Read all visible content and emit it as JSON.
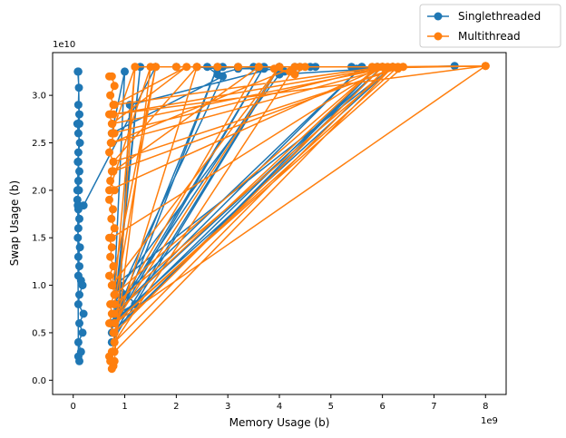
{
  "chart_data": {
    "type": "line",
    "xlabel": "Memory Usage (b)",
    "ylabel": "Swap Usage (b)",
    "x_offset_text": "1e9",
    "y_offset_text": "1e10",
    "xlim": [
      -0.4,
      8.4
    ],
    "ylim": [
      -0.15,
      3.45
    ],
    "x_ticks": [
      0,
      1,
      2,
      3,
      4,
      5,
      6,
      7,
      8
    ],
    "x_tick_labels": [
      "0",
      "1",
      "2",
      "3",
      "4",
      "5",
      "6",
      "7",
      "8"
    ],
    "y_ticks": [
      0.0,
      0.5,
      1.0,
      1.5,
      2.0,
      2.5,
      3.0
    ],
    "y_tick_labels": [
      "0.0",
      "0.5",
      "1.0",
      "1.5",
      "2.0",
      "2.5",
      "3.0"
    ],
    "legend_position": "upper right, outside plot",
    "grid": false,
    "series": [
      {
        "name": "Singlethreaded",
        "color": "#1f77b4",
        "x": [
          0.08,
          0.1,
          0.12,
          0.1,
          0.09,
          0.11,
          0.1,
          0.12,
          0.08,
          0.1,
          0.13,
          0.1,
          0.09,
          0.12,
          0.1,
          0.11,
          0.08,
          0.1,
          0.12,
          0.1,
          0.09,
          0.13,
          0.1,
          0.12,
          0.1,
          0.15,
          0.18,
          0.12,
          0.1,
          0.2,
          0.12,
          0.18,
          0.1,
          0.15,
          0.12,
          0.1,
          0.09,
          0.1,
          0.2,
          1.6,
          2.0,
          2.4,
          2.8,
          3.2,
          3.6,
          4.0,
          4.4,
          4.7,
          4.1,
          3.7,
          3.2,
          2.8,
          2.6,
          2.9,
          3.5,
          4.3,
          4.6,
          5.4,
          5.6,
          5.9,
          6.2,
          6.0,
          5.5,
          7.4,
          6.1,
          5.8,
          4.0,
          0.8,
          0.9,
          1.2,
          0.85,
          2.8,
          0.8,
          5.9,
          0.8,
          0.9,
          1.1,
          4.0,
          0.8,
          5.6,
          0.8,
          2.9,
          0.75,
          1.0,
          0.8,
          6.2,
          0.75,
          0.85,
          3.7,
          0.8,
          1.3,
          0.75,
          6.0,
          0.8,
          1.0,
          0.8,
          4.0,
          0.75
        ],
        "y": [
          2.0,
          2.3,
          2.7,
          3.25,
          3.25,
          3.08,
          2.9,
          2.8,
          2.7,
          2.6,
          2.5,
          2.4,
          2.3,
          2.2,
          2.1,
          2.0,
          1.9,
          1.8,
          1.7,
          1.6,
          1.5,
          1.4,
          1.3,
          1.2,
          1.1,
          1.05,
          1.0,
          0.9,
          0.8,
          0.7,
          0.6,
          0.5,
          0.4,
          0.3,
          0.2,
          0.25,
          1.84,
          1.84,
          1.84,
          3.3,
          3.3,
          3.3,
          3.28,
          3.3,
          3.29,
          3.3,
          3.3,
          3.3,
          3.25,
          3.28,
          3.28,
          3.22,
          3.3,
          3.3,
          3.3,
          3.3,
          3.3,
          3.3,
          3.3,
          3.3,
          3.3,
          3.3,
          3.28,
          3.31,
          3.29,
          3.28,
          3.22,
          0.9,
          1.0,
          0.8,
          0.7,
          3.3,
          0.5,
          3.3,
          0.6,
          0.8,
          2.9,
          3.3,
          0.7,
          3.3,
          0.8,
          3.2,
          2.6,
          3.25,
          1.0,
          3.3,
          0.6,
          0.7,
          3.3,
          0.6,
          3.3,
          0.5,
          3.3,
          0.7,
          0.9,
          0.5,
          3.3,
          0.4
        ]
      },
      {
        "name": "Multithread",
        "color": "#ff7f0e",
        "x": [
          0.7,
          0.75,
          0.8,
          0.72,
          0.78,
          0.7,
          0.76,
          0.8,
          0.73,
          0.7,
          0.78,
          0.75,
          0.72,
          0.8,
          0.7,
          0.77,
          0.74,
          0.8,
          0.7,
          0.75,
          0.72,
          0.78,
          0.7,
          0.76,
          0.8,
          0.72,
          0.75,
          0.7,
          0.78,
          0.8,
          0.75,
          0.7,
          0.72,
          0.78,
          0.75,
          0.8,
          1.2,
          1.6,
          2.0,
          2.4,
          2.8,
          3.2,
          3.6,
          4.0,
          4.4,
          4.2,
          3.9,
          4.3,
          4.5,
          5.8,
          6.0,
          6.2,
          6.4,
          6.3,
          6.1,
          8.0,
          6.0,
          0.8,
          2.2,
          0.75,
          6.2,
          0.8,
          1.6,
          0.75,
          4.0,
          0.8,
          6.4,
          0.78,
          2.4,
          0.8,
          6.0,
          0.75,
          1.2,
          0.8,
          5.9,
          0.8,
          3.6,
          0.78,
          6.3,
          0.8,
          8.0,
          0.78,
          6.1,
          0.8,
          4.3,
          0.75,
          6.2,
          0.8,
          1.5,
          0.7,
          6.0,
          0.75
        ],
        "y": [
          3.2,
          3.2,
          3.1,
          3.0,
          2.9,
          2.8,
          2.7,
          2.6,
          2.5,
          2.4,
          2.3,
          2.2,
          2.1,
          2.0,
          1.9,
          1.8,
          1.7,
          1.6,
          1.5,
          1.4,
          1.3,
          1.2,
          1.1,
          1.0,
          0.9,
          0.8,
          0.7,
          0.6,
          0.5,
          0.4,
          0.3,
          0.25,
          0.2,
          0.15,
          0.12,
          0.2,
          3.3,
          3.3,
          3.3,
          3.3,
          3.3,
          3.3,
          3.3,
          3.3,
          3.3,
          3.25,
          3.28,
          3.22,
          3.3,
          3.3,
          3.3,
          3.3,
          3.3,
          3.28,
          3.29,
          3.31,
          3.3,
          2.9,
          3.3,
          2.7,
          3.3,
          0.8,
          3.3,
          1.0,
          3.3,
          0.6,
          3.3,
          2.3,
          3.3,
          0.5,
          3.3,
          2.6,
          3.3,
          0.9,
          3.3,
          0.7,
          3.3,
          2.2,
          3.3,
          0.6,
          3.31,
          2.8,
          3.3,
          0.4,
          3.3,
          2.5,
          3.3,
          0.3,
          3.3,
          2.0,
          3.3,
          1.5
        ]
      }
    ]
  }
}
